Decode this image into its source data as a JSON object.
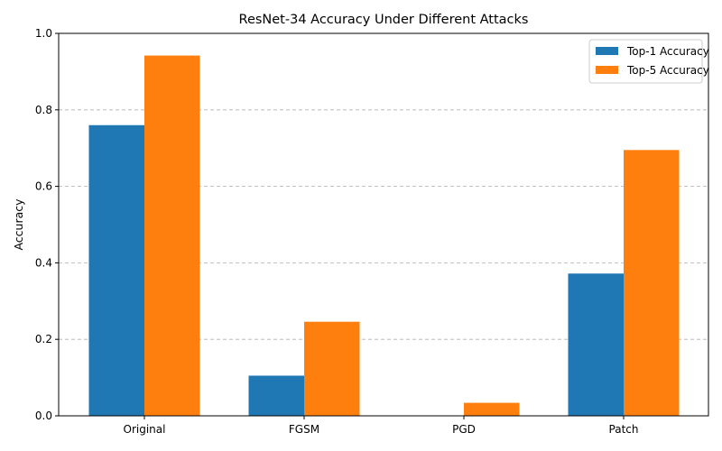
{
  "chart_data": {
    "type": "bar",
    "title": "ResNet-34 Accuracy Under Different Attacks",
    "xlabel": "",
    "ylabel": "Accuracy",
    "categories": [
      "Original",
      "FGSM",
      "PGD",
      "Patch"
    ],
    "series": [
      {
        "name": "Top-1 Accuracy",
        "color": "#1f77b4",
        "values": [
          0.76,
          0.105,
          0.0,
          0.372
        ]
      },
      {
        "name": "Top-5 Accuracy",
        "color": "#ff7f0e",
        "values": [
          0.942,
          0.246,
          0.034,
          0.695
        ]
      }
    ],
    "ylim": [
      0,
      1.0
    ],
    "yticks": [
      0.0,
      0.2,
      0.4,
      0.6,
      0.8,
      1.0
    ],
    "ytick_labels": [
      "0.0",
      "0.2",
      "0.4",
      "0.6",
      "0.8",
      "1.0"
    ],
    "grid": {
      "axis": "y",
      "style": "dashed"
    },
    "legend": "top-right"
  }
}
